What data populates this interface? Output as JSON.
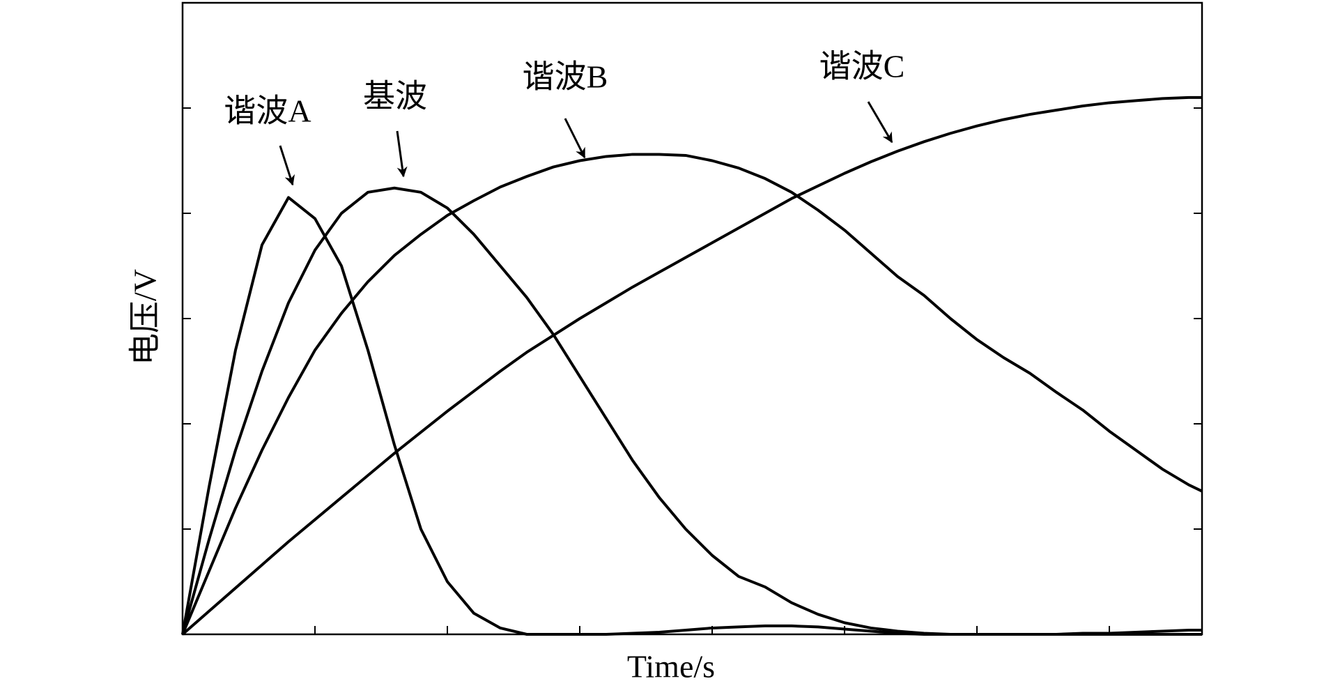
{
  "chart_data": {
    "type": "line",
    "x_label": "Time/s",
    "y_label": "电压/V",
    "x": [
      0,
      0.2,
      0.4,
      0.6,
      0.8,
      1.0,
      1.2,
      1.4,
      1.6,
      1.8,
      2.0,
      2.2,
      2.4,
      2.6,
      2.8,
      3.0,
      3.2,
      3.4,
      3.6,
      3.8,
      4.0,
      4.2,
      4.4,
      4.6,
      4.8,
      5.0,
      5.2,
      5.4,
      5.6,
      5.8,
      6.0,
      6.2,
      6.4,
      6.6,
      6.8,
      7.0,
      7.2,
      7.4,
      7.6,
      7.7
    ],
    "series": [
      {
        "name": "谐波A",
        "color": "#000000",
        "values": [
          0,
          1.4,
          2.7,
          3.7,
          4.15,
          3.95,
          3.5,
          2.7,
          1.8,
          1.0,
          0.5,
          0.2,
          0.06,
          0,
          0,
          0,
          0,
          0.01,
          0.02,
          0.04,
          0.06,
          0.07,
          0.08,
          0.08,
          0.07,
          0.05,
          0.03,
          0.01,
          0,
          0,
          0,
          0,
          0,
          0,
          0.01,
          0.01,
          0.02,
          0.03,
          0.04,
          0.04
        ]
      },
      {
        "name": "基波",
        "color": "#000000",
        "values": [
          0,
          0.9,
          1.75,
          2.5,
          3.15,
          3.65,
          4.0,
          4.2,
          4.24,
          4.2,
          4.05,
          3.8,
          3.5,
          3.2,
          2.85,
          2.45,
          2.05,
          1.65,
          1.3,
          1.0,
          0.75,
          0.55,
          0.45,
          0.3,
          0.19,
          0.11,
          0.06,
          0.03,
          0.01,
          0,
          0,
          0,
          0,
          0,
          0,
          0,
          0,
          0,
          0,
          0
        ]
      },
      {
        "name": "谐波B",
        "color": "#000000",
        "values": [
          0,
          0.6,
          1.2,
          1.75,
          2.25,
          2.7,
          3.05,
          3.35,
          3.6,
          3.8,
          3.98,
          4.12,
          4.25,
          4.35,
          4.44,
          4.5,
          4.54,
          4.56,
          4.56,
          4.55,
          4.5,
          4.43,
          4.33,
          4.2,
          4.03,
          3.84,
          3.62,
          3.4,
          3.22,
          3.0,
          2.8,
          2.63,
          2.48,
          2.3,
          2.13,
          1.93,
          1.75,
          1.57,
          1.42,
          1.36
        ]
      },
      {
        "name": "谐波C",
        "color": "#000000",
        "values": [
          0,
          0.22,
          0.44,
          0.66,
          0.88,
          1.09,
          1.3,
          1.51,
          1.72,
          1.92,
          2.12,
          2.31,
          2.5,
          2.68,
          2.84,
          3.0,
          3.15,
          3.3,
          3.44,
          3.58,
          3.72,
          3.86,
          4.0,
          4.14,
          4.26,
          4.38,
          4.49,
          4.59,
          4.68,
          4.76,
          4.83,
          4.89,
          4.94,
          4.98,
          5.02,
          5.05,
          5.07,
          5.09,
          5.1,
          5.1
        ]
      }
    ],
    "xlim": [
      0,
      7.7
    ],
    "xticks": [
      1,
      2,
      3,
      4,
      5,
      6,
      7
    ],
    "ylim": [
      0,
      6
    ],
    "yticks": [
      1,
      2,
      3,
      4,
      5
    ],
    "grid": false
  }
}
